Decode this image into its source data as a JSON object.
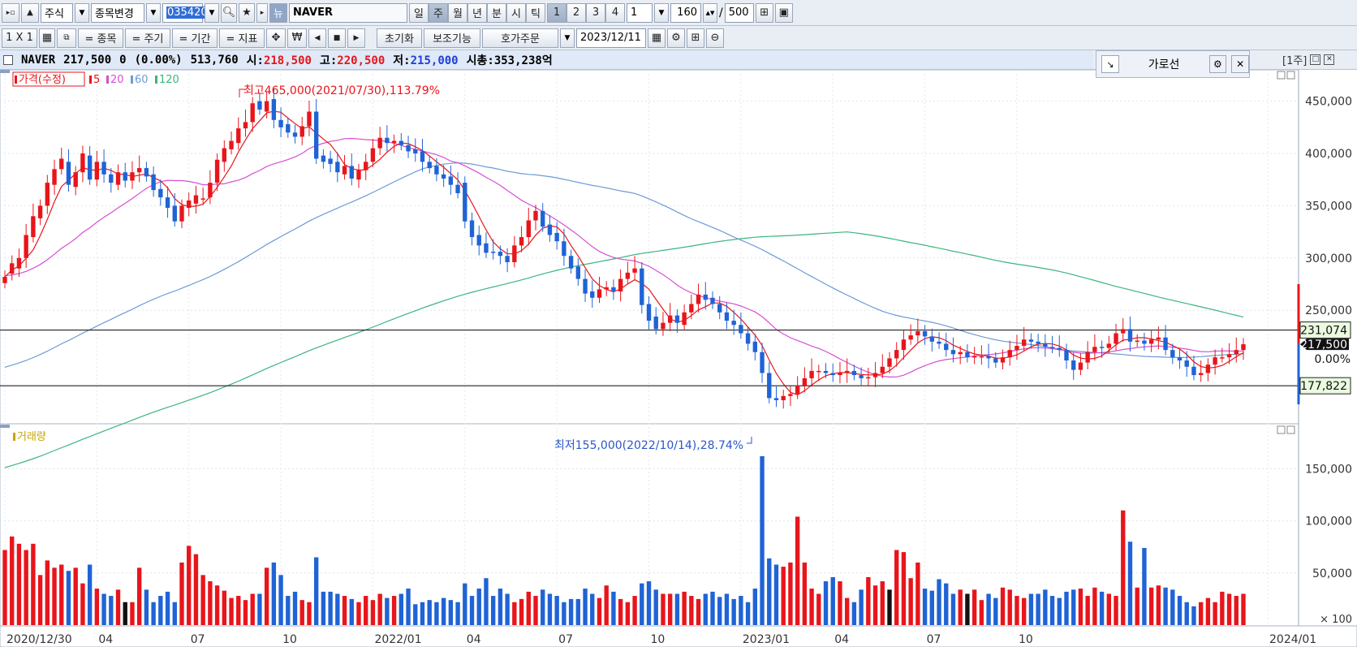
{
  "toolbar1": {
    "market": "주식",
    "change_label": "종목변경",
    "code": "035420",
    "stock_name": "NAVER",
    "periods": [
      "일",
      "주",
      "월",
      "년",
      "분",
      "시",
      "틱"
    ],
    "selected_period": "주",
    "nums": [
      "1",
      "2",
      "3",
      "4"
    ],
    "interval": "1",
    "count": "160",
    "total": "500",
    "news": "뉴"
  },
  "toolbar2": {
    "layout": "1 X 1",
    "tabs": [
      "= 종목",
      "= 주기",
      "= 기간",
      "= 지표"
    ],
    "reset": "초기화",
    "aux": "보조기능",
    "order": "호가주문",
    "date": "2023/12/11"
  },
  "info": {
    "name": "NAVER",
    "price": "217,500",
    "change": "0",
    "change_pct": "(0.00%)",
    "volume": "513,760",
    "open_label": "시:",
    "open": "218,500",
    "high_label": "고:",
    "high": "220,500",
    "low_label": "저:",
    "low": "215,000",
    "cap_label": "시총:",
    "cap": "353,238억"
  },
  "hline_panel": {
    "title": "가로선"
  },
  "period_label": "[1주]",
  "colors": {
    "up": "#e8151b",
    "down": "#1f63d6",
    "ma5": "#e8151b",
    "ma20": "#d54fd3",
    "ma60": "#6d9bd6",
    "ma120": "#3cb57e"
  },
  "chart_data": [
    {
      "type": "candlestick",
      "title": "",
      "legend": [
        "가격(수정)",
        "5",
        "20",
        "60",
        "120"
      ],
      "x_ticks": [
        "2020/12/30",
        "04",
        "07",
        "10",
        "2022/01",
        "04",
        "07",
        "10",
        "2023/01",
        "04",
        "07",
        "10",
        "2024/01"
      ],
      "y_ticks": [
        "450,000",
        "400,000",
        "350,000",
        "300,000",
        "250,000"
      ],
      "ylim": [
        150000,
        480000
      ],
      "annotations": {
        "max": "최고465,000(2021/07/30),113.79%",
        "min": "최저155,000(2022/10/14),28.74%",
        "hline_upper": "231,074",
        "hline_lower": "177,822",
        "current": "217,500",
        "pct": "0.00%"
      },
      "hlines": [
        231074,
        177822
      ],
      "current": 217500,
      "closes": [
        282000,
        295000,
        300000,
        322000,
        340000,
        350000,
        372000,
        385000,
        395000,
        370000,
        382000,
        400000,
        375000,
        392000,
        380000,
        372000,
        382000,
        374000,
        382000,
        386000,
        378000,
        365000,
        358000,
        348000,
        335000,
        350000,
        355000,
        360000,
        357000,
        372000,
        394000,
        405000,
        412000,
        424000,
        430000,
        448000,
        442000,
        450000,
        432000,
        425000,
        420000,
        416000,
        426000,
        440000,
        395000,
        392000,
        390000,
        382000,
        388000,
        376000,
        384000,
        392000,
        405000,
        415000,
        410000,
        412000,
        408000,
        402000,
        400000,
        392000,
        386000,
        380000,
        376000,
        370000,
        362000,
        335000,
        320000,
        312000,
        305000,
        305000,
        302000,
        296000,
        312000,
        320000,
        336000,
        345000,
        330000,
        322000,
        316000,
        302000,
        290000,
        280000,
        266000,
        262000,
        270000,
        272000,
        268000,
        280000,
        286000,
        290000,
        255000,
        240000,
        232000,
        238000,
        245000,
        238000,
        248000,
        256000,
        265000,
        260000,
        256000,
        248000,
        240000,
        236000,
        228000,
        218000,
        210000,
        190000,
        166000,
        164000,
        168000,
        170000,
        178000,
        185000,
        192000,
        192000,
        190000,
        188000,
        190000,
        192000,
        188000,
        185000,
        186000,
        190000,
        196000,
        204000,
        212000,
        222000,
        226000,
        230000,
        225000,
        220000,
        218000,
        212000,
        208000,
        210000,
        205000,
        206000,
        206000,
        204000,
        200000,
        205000,
        212000,
        216000,
        222000,
        220000,
        218000,
        215000,
        214000,
        212000,
        202000,
        193000,
        200000,
        210000,
        215000,
        214000,
        218000,
        228000,
        232000,
        220000,
        221000,
        218000,
        222000,
        224000,
        212000,
        205000,
        202000,
        196000,
        188000,
        190000,
        198000,
        205000,
        205000,
        208000,
        212000,
        217500
      ],
      "candles": [
        {
          "o": 276000,
          "c": 282000
        },
        {
          "o": 285000,
          "c": 295000
        },
        {
          "o": 290000,
          "c": 300000
        },
        {
          "o": 300000,
          "c": 322000
        },
        {
          "o": 320000,
          "c": 340000
        },
        {
          "o": 338000,
          "c": 350000
        },
        {
          "o": 350000,
          "c": 372000
        },
        {
          "o": 370000,
          "c": 385000
        },
        {
          "o": 385000,
          "c": 395000
        },
        {
          "o": 392000,
          "c": 370000
        },
        {
          "o": 368000,
          "c": 382000
        },
        {
          "o": 382000,
          "c": 400000
        },
        {
          "o": 398000,
          "c": 375000
        },
        {
          "o": 375000,
          "c": 392000
        },
        {
          "o": 392000,
          "c": 380000
        },
        {
          "o": 380000,
          "c": 372000
        },
        {
          "o": 370000,
          "c": 382000
        },
        {
          "o": 382000,
          "c": 374000
        },
        {
          "o": 374000,
          "c": 382000
        },
        {
          "o": 382000,
          "c": 386000
        },
        {
          "o": 386000,
          "c": 378000
        },
        {
          "o": 380000,
          "c": 365000
        },
        {
          "o": 366000,
          "c": 358000
        },
        {
          "o": 358000,
          "c": 348000
        },
        {
          "o": 350000,
          "c": 335000
        },
        {
          "o": 335000,
          "c": 350000
        },
        {
          "o": 348000,
          "c": 355000
        },
        {
          "o": 352000,
          "c": 360000
        },
        {
          "o": 356000,
          "c": 357000
        },
        {
          "o": 358000,
          "c": 372000
        },
        {
          "o": 372000,
          "c": 394000
        },
        {
          "o": 392000,
          "c": 405000
        },
        {
          "o": 404000,
          "c": 412000
        },
        {
          "o": 410000,
          "c": 424000
        },
        {
          "o": 424000,
          "c": 430000
        },
        {
          "o": 430000,
          "c": 448000
        },
        {
          "o": 450000,
          "c": 442000
        },
        {
          "o": 440000,
          "c": 450000
        },
        {
          "o": 452000,
          "c": 432000
        },
        {
          "o": 432000,
          "c": 425000
        },
        {
          "o": 428000,
          "c": 420000
        },
        {
          "o": 420000,
          "c": 416000
        },
        {
          "o": 416000,
          "c": 426000
        },
        {
          "o": 426000,
          "c": 440000
        },
        {
          "o": 440000,
          "c": 395000
        },
        {
          "o": 398000,
          "c": 392000
        },
        {
          "o": 395000,
          "c": 390000
        },
        {
          "o": 392000,
          "c": 382000
        },
        {
          "o": 380000,
          "c": 388000
        },
        {
          "o": 388000,
          "c": 376000
        },
        {
          "o": 375000,
          "c": 384000
        },
        {
          "o": 384000,
          "c": 392000
        },
        {
          "o": 392000,
          "c": 405000
        },
        {
          "o": 405000,
          "c": 415000
        },
        {
          "o": 415000,
          "c": 410000
        },
        {
          "o": 410000,
          "c": 412000
        },
        {
          "o": 412000,
          "c": 408000
        },
        {
          "o": 408000,
          "c": 402000
        },
        {
          "o": 404000,
          "c": 400000
        },
        {
          "o": 402000,
          "c": 392000
        },
        {
          "o": 392000,
          "c": 386000
        },
        {
          "o": 388000,
          "c": 380000
        },
        {
          "o": 380000,
          "c": 376000
        },
        {
          "o": 378000,
          "c": 370000
        },
        {
          "o": 370000,
          "c": 362000
        },
        {
          "o": 372000,
          "c": 335000
        },
        {
          "o": 336000,
          "c": 320000
        },
        {
          "o": 322000,
          "c": 312000
        },
        {
          "o": 314000,
          "c": 305000
        },
        {
          "o": 306000,
          "c": 305000
        },
        {
          "o": 306000,
          "c": 302000
        },
        {
          "o": 302000,
          "c": 296000
        },
        {
          "o": 296000,
          "c": 312000
        },
        {
          "o": 312000,
          "c": 320000
        },
        {
          "o": 320000,
          "c": 336000
        },
        {
          "o": 336000,
          "c": 345000
        },
        {
          "o": 345000,
          "c": 330000
        },
        {
          "o": 332000,
          "c": 322000
        },
        {
          "o": 324000,
          "c": 316000
        },
        {
          "o": 316000,
          "c": 302000
        },
        {
          "o": 302000,
          "c": 290000
        },
        {
          "o": 292000,
          "c": 280000
        },
        {
          "o": 280000,
          "c": 266000
        },
        {
          "o": 268000,
          "c": 262000
        },
        {
          "o": 262000,
          "c": 270000
        },
        {
          "o": 270000,
          "c": 272000
        },
        {
          "o": 272000,
          "c": 268000
        },
        {
          "o": 268000,
          "c": 280000
        },
        {
          "o": 280000,
          "c": 286000
        },
        {
          "o": 286000,
          "c": 290000
        },
        {
          "o": 290000,
          "c": 255000
        },
        {
          "o": 256000,
          "c": 240000
        },
        {
          "o": 244000,
          "c": 232000
        },
        {
          "o": 232000,
          "c": 238000
        },
        {
          "o": 238000,
          "c": 245000
        },
        {
          "o": 245000,
          "c": 238000
        },
        {
          "o": 236000,
          "c": 248000
        },
        {
          "o": 248000,
          "c": 256000
        },
        {
          "o": 256000,
          "c": 265000
        },
        {
          "o": 265000,
          "c": 260000
        },
        {
          "o": 262000,
          "c": 256000
        },
        {
          "o": 256000,
          "c": 248000
        },
        {
          "o": 248000,
          "c": 240000
        },
        {
          "o": 240000,
          "c": 236000
        },
        {
          "o": 236000,
          "c": 228000
        },
        {
          "o": 228000,
          "c": 218000
        },
        {
          "o": 220000,
          "c": 210000
        },
        {
          "o": 210000,
          "c": 190000
        },
        {
          "o": 190000,
          "c": 166000
        },
        {
          "o": 166000,
          "c": 164000
        },
        {
          "o": 164000,
          "c": 168000
        },
        {
          "o": 168000,
          "c": 170000
        },
        {
          "o": 170000,
          "c": 178000
        },
        {
          "o": 178000,
          "c": 185000
        },
        {
          "o": 185000,
          "c": 192000
        },
        {
          "o": 192000,
          "c": 192000
        },
        {
          "o": 192000,
          "c": 190000
        },
        {
          "o": 190000,
          "c": 188000
        },
        {
          "o": 188000,
          "c": 190000
        },
        {
          "o": 190000,
          "c": 192000
        },
        {
          "o": 192000,
          "c": 188000
        },
        {
          "o": 188000,
          "c": 185000
        },
        {
          "o": 185000,
          "c": 186000
        },
        {
          "o": 186000,
          "c": 190000
        },
        {
          "o": 190000,
          "c": 196000
        },
        {
          "o": 196000,
          "c": 204000
        },
        {
          "o": 204000,
          "c": 212000
        },
        {
          "o": 212000,
          "c": 222000
        },
        {
          "o": 222000,
          "c": 226000
        },
        {
          "o": 226000,
          "c": 230000
        },
        {
          "o": 230000,
          "c": 225000
        },
        {
          "o": 225000,
          "c": 220000
        },
        {
          "o": 220000,
          "c": 218000
        },
        {
          "o": 218000,
          "c": 212000
        },
        {
          "o": 212000,
          "c": 208000
        },
        {
          "o": 208000,
          "c": 210000
        },
        {
          "o": 210000,
          "c": 205000
        },
        {
          "o": 205000,
          "c": 206000
        },
        {
          "o": 206000,
          "c": 206000
        },
        {
          "o": 206000,
          "c": 204000
        },
        {
          "o": 204000,
          "c": 200000
        },
        {
          "o": 200000,
          "c": 205000
        },
        {
          "o": 205000,
          "c": 212000
        },
        {
          "o": 212000,
          "c": 216000
        },
        {
          "o": 216000,
          "c": 222000
        },
        {
          "o": 222000,
          "c": 220000
        },
        {
          "o": 220000,
          "c": 218000
        },
        {
          "o": 218000,
          "c": 215000
        },
        {
          "o": 215000,
          "c": 214000
        },
        {
          "o": 214000,
          "c": 212000
        },
        {
          "o": 212000,
          "c": 202000
        },
        {
          "o": 202000,
          "c": 193000
        },
        {
          "o": 193000,
          "c": 200000
        },
        {
          "o": 200000,
          "c": 210000
        },
        {
          "o": 210000,
          "c": 215000
        },
        {
          "o": 215000,
          "c": 214000
        },
        {
          "o": 214000,
          "c": 218000
        },
        {
          "o": 218000,
          "c": 228000
        },
        {
          "o": 228000,
          "c": 232000
        },
        {
          "o": 232000,
          "c": 220000
        },
        {
          "o": 220000,
          "c": 221000
        },
        {
          "o": 221000,
          "c": 218000
        },
        {
          "o": 218000,
          "c": 222000
        },
        {
          "o": 222000,
          "c": 224000
        },
        {
          "o": 224000,
          "c": 212000
        },
        {
          "o": 212000,
          "c": 205000
        },
        {
          "o": 205000,
          "c": 202000
        },
        {
          "o": 202000,
          "c": 196000
        },
        {
          "o": 196000,
          "c": 188000
        },
        {
          "o": 188000,
          "c": 190000
        },
        {
          "o": 190000,
          "c": 198000
        },
        {
          "o": 198000,
          "c": 205000
        },
        {
          "o": 205000,
          "c": 205000
        },
        {
          "o": 205000,
          "c": 208000
        },
        {
          "o": 208000,
          "c": 212000
        },
        {
          "o": 212000,
          "c": 217500
        }
      ]
    },
    {
      "type": "bar",
      "title": "",
      "legend": [
        "거래량"
      ],
      "y_ticks": [
        "150,000",
        "100,000",
        "50,000",
        "× 100"
      ],
      "ylim": [
        0,
        190000
      ],
      "values": [
        72000,
        85000,
        78000,
        72000,
        78000,
        48000,
        62000,
        55000,
        58000,
        52000,
        55000,
        40000,
        58000,
        35000,
        30000,
        28000,
        34000,
        22000,
        22000,
        55000,
        34000,
        22000,
        28000,
        32000,
        22000,
        60000,
        76000,
        68000,
        48000,
        42000,
        38000,
        33000,
        26000,
        28000,
        24000,
        30000,
        30000,
        55000,
        60000,
        48000,
        28000,
        32000,
        24000,
        22000,
        65000,
        32000,
        32000,
        30000,
        28000,
        25000,
        22000,
        28000,
        24000,
        30000,
        26000,
        28000,
        30000,
        35000,
        20000,
        22000,
        24000,
        22000,
        26000,
        24000,
        22000,
        40000,
        28000,
        35000,
        45000,
        28000,
        35000,
        30000,
        22000,
        25000,
        32000,
        28000,
        34000,
        30000,
        28000,
        22000,
        25000,
        25000,
        35000,
        30000,
        26000,
        38000,
        32000,
        25000,
        22000,
        28000,
        40000,
        42000,
        34000,
        30000,
        30000,
        30000,
        32000,
        28000,
        25000,
        30000,
        32000,
        27000,
        30000,
        25000,
        28000,
        22000,
        35000,
        162000,
        64000,
        58000,
        56000,
        60000,
        104000,
        60000,
        35000,
        30000,
        42000,
        46000,
        42000,
        26000,
        22000,
        34000,
        46000,
        38000,
        42000,
        34000,
        72000,
        70000,
        45000,
        60000,
        35000,
        33000,
        44000,
        40000,
        30000,
        34000,
        30000,
        34000,
        24000,
        30000,
        26000,
        36000,
        34000,
        28000,
        26000,
        30000,
        30000,
        34000,
        28000,
        26000,
        32000,
        34000,
        35000,
        28000,
        36000,
        32000,
        30000,
        28000,
        110000,
        80000,
        36000,
        74000,
        36000,
        38000,
        36000,
        34000,
        28000,
        22000,
        18000,
        22000,
        26000,
        22000,
        32000,
        30000,
        28000,
        30000,
        26000,
        22000,
        16000,
        28000,
        26000,
        30000,
        6000
      ],
      "colors_seq": "mixed"
    }
  ]
}
